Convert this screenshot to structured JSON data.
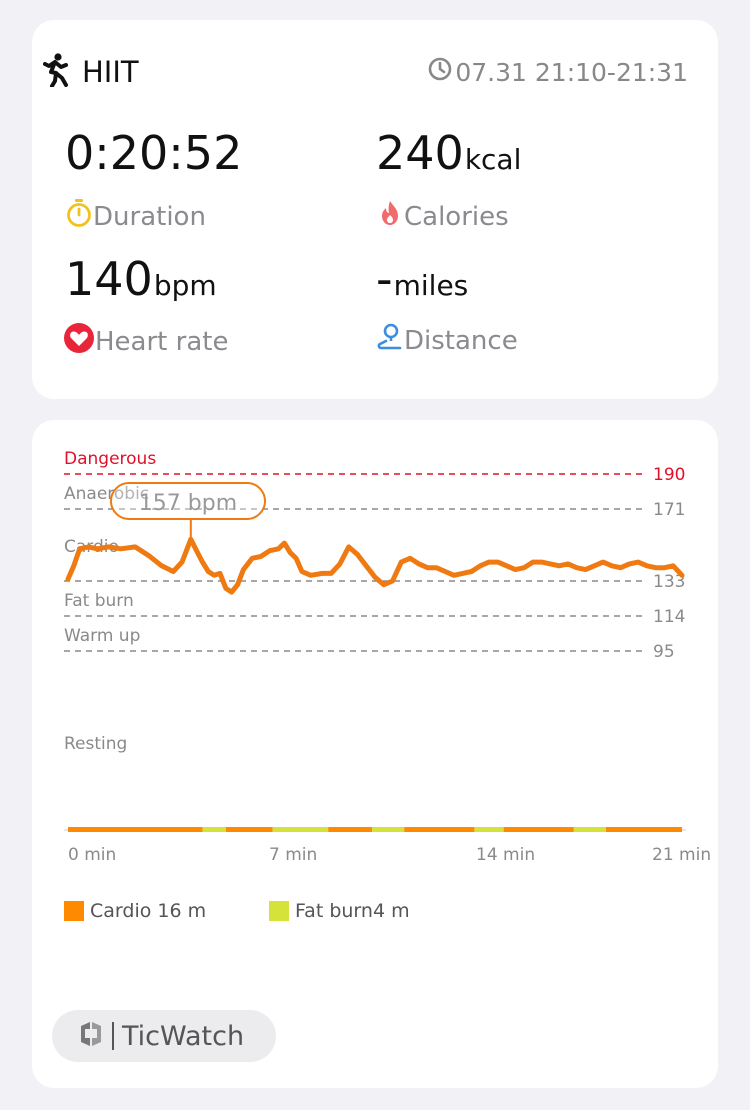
{
  "summary": {
    "workout_type": "HIIT",
    "time_range": "07.31 21:10-21:31",
    "duration": {
      "value": "0:20:52",
      "unit": "",
      "label": "Duration"
    },
    "calories": {
      "value": "240",
      "unit": "kcal",
      "label": "Calories"
    },
    "heart_rate": {
      "value": "140",
      "unit": "bpm",
      "label": "Heart rate"
    },
    "distance": {
      "value": "-",
      "unit": "miles",
      "label": "Distance"
    }
  },
  "colors": {
    "line": "#f07a12",
    "dangerous": "#e0102a",
    "cardio": "#ff8a00",
    "fat_burn": "#d4e23a"
  },
  "chart_data": {
    "type": "line",
    "zones": [
      {
        "name": "Dangerous",
        "threshold": 190
      },
      {
        "name": "Anaerobic",
        "threshold": 171
      },
      {
        "name": "Cardio",
        "threshold": 133
      },
      {
        "name": "Fat burn",
        "threshold": 114
      },
      {
        "name": "Warm up",
        "threshold": 95
      },
      {
        "name": "Resting",
        "threshold": null
      }
    ],
    "threshold_labels": [
      "190",
      "171",
      "133",
      "114",
      "95"
    ],
    "peak_callout": "157 bpm",
    "x_ticks": [
      "0 min",
      "7 min",
      "14 min",
      "21 min"
    ],
    "xlim": [
      0,
      21
    ],
    "series": [
      {
        "x": [
          0,
          0.2,
          0.4,
          0.7,
          1,
          1.4,
          1.8,
          2.3,
          2.8,
          3.2,
          3.6,
          3.9,
          4.2,
          4.4,
          4.6,
          4.8,
          5,
          5.2,
          5.4,
          5.6,
          5.8,
          6,
          6.3,
          6.6,
          6.9,
          7.2,
          7.4,
          7.6,
          7.8,
          8,
          8.3,
          8.7,
          9,
          9.3,
          9.6,
          9.9,
          10.2,
          10.5,
          10.8,
          11.1,
          11.4,
          11.7,
          12,
          12.3,
          12.6,
          12.9,
          13.2,
          13.5,
          13.8,
          14.1,
          14.4,
          14.7,
          15,
          15.3,
          15.6,
          15.9,
          16.2,
          16.5,
          16.8,
          17.1,
          17.4,
          17.7,
          18,
          18.3,
          18.6,
          18.9,
          19.2,
          19.5,
          19.8,
          20.1,
          20.4,
          20.7,
          21
        ],
        "y": [
          134,
          141,
          150,
          151,
          150,
          151,
          150,
          151,
          146,
          141,
          138,
          143,
          155,
          149,
          143,
          138,
          136,
          137,
          129,
          127,
          131,
          139,
          145,
          146,
          149,
          150,
          153,
          148,
          145,
          138,
          136,
          137,
          137,
          142,
          151,
          147,
          141,
          135,
          131,
          133,
          143,
          145,
          142,
          140,
          140,
          138,
          136,
          137,
          138,
          141,
          143,
          143,
          141,
          139,
          140,
          143,
          143,
          142,
          141,
          142,
          140,
          139,
          141,
          143,
          141,
          140,
          142,
          143,
          141,
          140,
          140,
          141,
          136
        ]
      }
    ],
    "zone_bar": [
      {
        "zone": "Cardio",
        "from": 0,
        "to": 4.6
      },
      {
        "zone": "Fat burn",
        "from": 4.6,
        "to": 5.4
      },
      {
        "zone": "Cardio",
        "from": 5.4,
        "to": 7
      },
      {
        "zone": "Fat burn",
        "from": 7,
        "to": 8.9
      },
      {
        "zone": "Cardio",
        "from": 8.9,
        "to": 10.4
      },
      {
        "zone": "Fat burn",
        "from": 10.4,
        "to": 11.5
      },
      {
        "zone": "Cardio",
        "from": 11.5,
        "to": 13.9
      },
      {
        "zone": "Fat burn",
        "from": 13.9,
        "to": 14.9
      },
      {
        "zone": "Cardio",
        "from": 14.9,
        "to": 17.3
      },
      {
        "zone": "Fat burn",
        "from": 17.3,
        "to": 18.4
      },
      {
        "zone": "Cardio",
        "from": 18.4,
        "to": 21
      }
    ],
    "legend": [
      {
        "label": "Cardio 16 m",
        "color": "#ff8a00"
      },
      {
        "label": "Fat burn4 m",
        "color": "#d4e23a"
      }
    ]
  },
  "brand": {
    "name": "TicWatch"
  }
}
